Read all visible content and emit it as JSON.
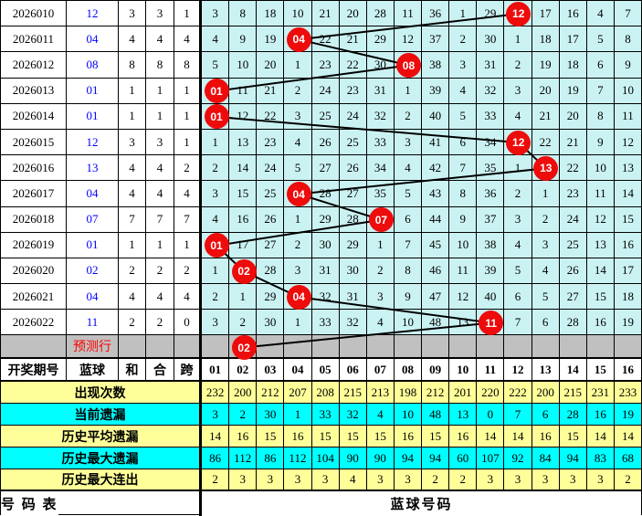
{
  "chart_data": {
    "type": "table",
    "columns_left": [
      "开奖期号",
      "蓝球",
      "和",
      "合",
      "跨"
    ],
    "ball_columns": [
      "01",
      "02",
      "03",
      "04",
      "05",
      "06",
      "07",
      "08",
      "09",
      "10",
      "11",
      "12",
      "13",
      "14",
      "15",
      "16"
    ],
    "draws": [
      {
        "issue": "2026010",
        "blue": "12",
        "sum": "3",
        "combo": "3",
        "span": "1",
        "ball_col": 12,
        "miss": [
          "3",
          "8",
          "18",
          "10",
          "21",
          "20",
          "28",
          "11",
          "36",
          "1",
          "29",
          "",
          "17",
          "16",
          "4",
          "7"
        ]
      },
      {
        "issue": "2026011",
        "blue": "04",
        "sum": "4",
        "combo": "4",
        "span": "4",
        "ball_col": 4,
        "miss": [
          "4",
          "9",
          "19",
          "",
          "22",
          "21",
          "29",
          "12",
          "37",
          "2",
          "30",
          "1",
          "18",
          "17",
          "5",
          "8"
        ]
      },
      {
        "issue": "2026012",
        "blue": "08",
        "sum": "8",
        "combo": "8",
        "span": "8",
        "ball_col": 8,
        "miss": [
          "5",
          "10",
          "20",
          "1",
          "23",
          "22",
          "30",
          "",
          "38",
          "3",
          "31",
          "2",
          "19",
          "18",
          "6",
          "9"
        ]
      },
      {
        "issue": "2026013",
        "blue": "01",
        "sum": "1",
        "combo": "1",
        "span": "1",
        "ball_col": 1,
        "miss": [
          "",
          "11",
          "21",
          "2",
          "24",
          "23",
          "31",
          "1",
          "39",
          "4",
          "32",
          "3",
          "20",
          "19",
          "7",
          "10"
        ]
      },
      {
        "issue": "2026014",
        "blue": "01",
        "sum": "1",
        "combo": "1",
        "span": "1",
        "ball_col": 1,
        "miss": [
          "",
          "12",
          "22",
          "3",
          "25",
          "24",
          "32",
          "2",
          "40",
          "5",
          "33",
          "4",
          "21",
          "20",
          "8",
          "11"
        ]
      },
      {
        "issue": "2026015",
        "blue": "12",
        "sum": "3",
        "combo": "3",
        "span": "1",
        "ball_col": 12,
        "miss": [
          "1",
          "13",
          "23",
          "4",
          "26",
          "25",
          "33",
          "3",
          "41",
          "6",
          "34",
          "",
          "22",
          "21",
          "9",
          "12"
        ]
      },
      {
        "issue": "2026016",
        "blue": "13",
        "sum": "4",
        "combo": "4",
        "span": "2",
        "ball_col": 13,
        "miss": [
          "2",
          "14",
          "24",
          "5",
          "27",
          "26",
          "34",
          "4",
          "42",
          "7",
          "35",
          "1",
          "",
          "22",
          "10",
          "13"
        ]
      },
      {
        "issue": "2026017",
        "blue": "04",
        "sum": "4",
        "combo": "4",
        "span": "4",
        "ball_col": 4,
        "miss": [
          "3",
          "15",
          "25",
          "",
          "28",
          "27",
          "35",
          "5",
          "43",
          "8",
          "36",
          "2",
          "1",
          "23",
          "11",
          "14"
        ]
      },
      {
        "issue": "2026018",
        "blue": "07",
        "sum": "7",
        "combo": "7",
        "span": "7",
        "ball_col": 7,
        "miss": [
          "4",
          "16",
          "26",
          "1",
          "29",
          "28",
          "",
          "6",
          "44",
          "9",
          "37",
          "3",
          "2",
          "24",
          "12",
          "15"
        ]
      },
      {
        "issue": "2026019",
        "blue": "01",
        "sum": "1",
        "combo": "1",
        "span": "1",
        "ball_col": 1,
        "miss": [
          "",
          "17",
          "27",
          "2",
          "30",
          "29",
          "1",
          "7",
          "45",
          "10",
          "38",
          "4",
          "3",
          "25",
          "13",
          "16"
        ]
      },
      {
        "issue": "2026020",
        "blue": "02",
        "sum": "2",
        "combo": "2",
        "span": "2",
        "ball_col": 2,
        "miss": [
          "1",
          "",
          "28",
          "3",
          "31",
          "30",
          "2",
          "8",
          "46",
          "11",
          "39",
          "5",
          "4",
          "26",
          "14",
          "17"
        ]
      },
      {
        "issue": "2026021",
        "blue": "04",
        "sum": "4",
        "combo": "4",
        "span": "4",
        "ball_col": 4,
        "miss": [
          "2",
          "1",
          "29",
          "",
          "32",
          "31",
          "3",
          "9",
          "47",
          "12",
          "40",
          "6",
          "5",
          "27",
          "15",
          "18"
        ]
      },
      {
        "issue": "2026022",
        "blue": "11",
        "sum": "2",
        "combo": "2",
        "span": "0",
        "ball_col": 11,
        "miss": [
          "3",
          "2",
          "30",
          "1",
          "33",
          "32",
          "4",
          "10",
          "48",
          "13",
          "",
          "7",
          "6",
          "28",
          "16",
          "19"
        ]
      }
    ],
    "prediction_row": {
      "label": "预测行",
      "ball": "02",
      "ball_col": 2
    },
    "stats": [
      {
        "label": "出现次数",
        "bg": "yellow",
        "values": [
          "232",
          "200",
          "212",
          "207",
          "208",
          "215",
          "213",
          "198",
          "212",
          "201",
          "220",
          "222",
          "200",
          "215",
          "231",
          "233"
        ]
      },
      {
        "label": "当前遗漏",
        "bg": "cyan",
        "values": [
          "3",
          "2",
          "30",
          "1",
          "33",
          "32",
          "4",
          "10",
          "48",
          "13",
          "0",
          "7",
          "6",
          "28",
          "16",
          "19"
        ]
      },
      {
        "label": "历史平均遗漏",
        "bg": "yellow",
        "values": [
          "14",
          "16",
          "15",
          "16",
          "15",
          "15",
          "15",
          "16",
          "15",
          "16",
          "14",
          "14",
          "16",
          "15",
          "14",
          "14"
        ]
      },
      {
        "label": "历史最大遗漏",
        "bg": "cyan",
        "values": [
          "86",
          "112",
          "86",
          "112",
          "104",
          "90",
          "90",
          "94",
          "94",
          "60",
          "107",
          "92",
          "84",
          "94",
          "83",
          "68"
        ]
      },
      {
        "label": "历史最大连出",
        "bg": "yellow",
        "values": [
          "2",
          "3",
          "3",
          "3",
          "3",
          "4",
          "3",
          "3",
          "2",
          "2",
          "3",
          "3",
          "3",
          "3",
          "3",
          "2"
        ]
      }
    ],
    "footer": {
      "left": "号 码 表",
      "right": "蓝球号码"
    }
  },
  "colors": {
    "cell_bg": "#CBF2F2",
    "stat_yellow": "#FFFF99",
    "stat_cyan": "#00FFFF",
    "prediction_gray": "#C0C0C0",
    "ball_red": "#EE0B0B",
    "blue_text": "#0000FF",
    "prediction_text": "#FF0000",
    "line_color": "#000000"
  }
}
